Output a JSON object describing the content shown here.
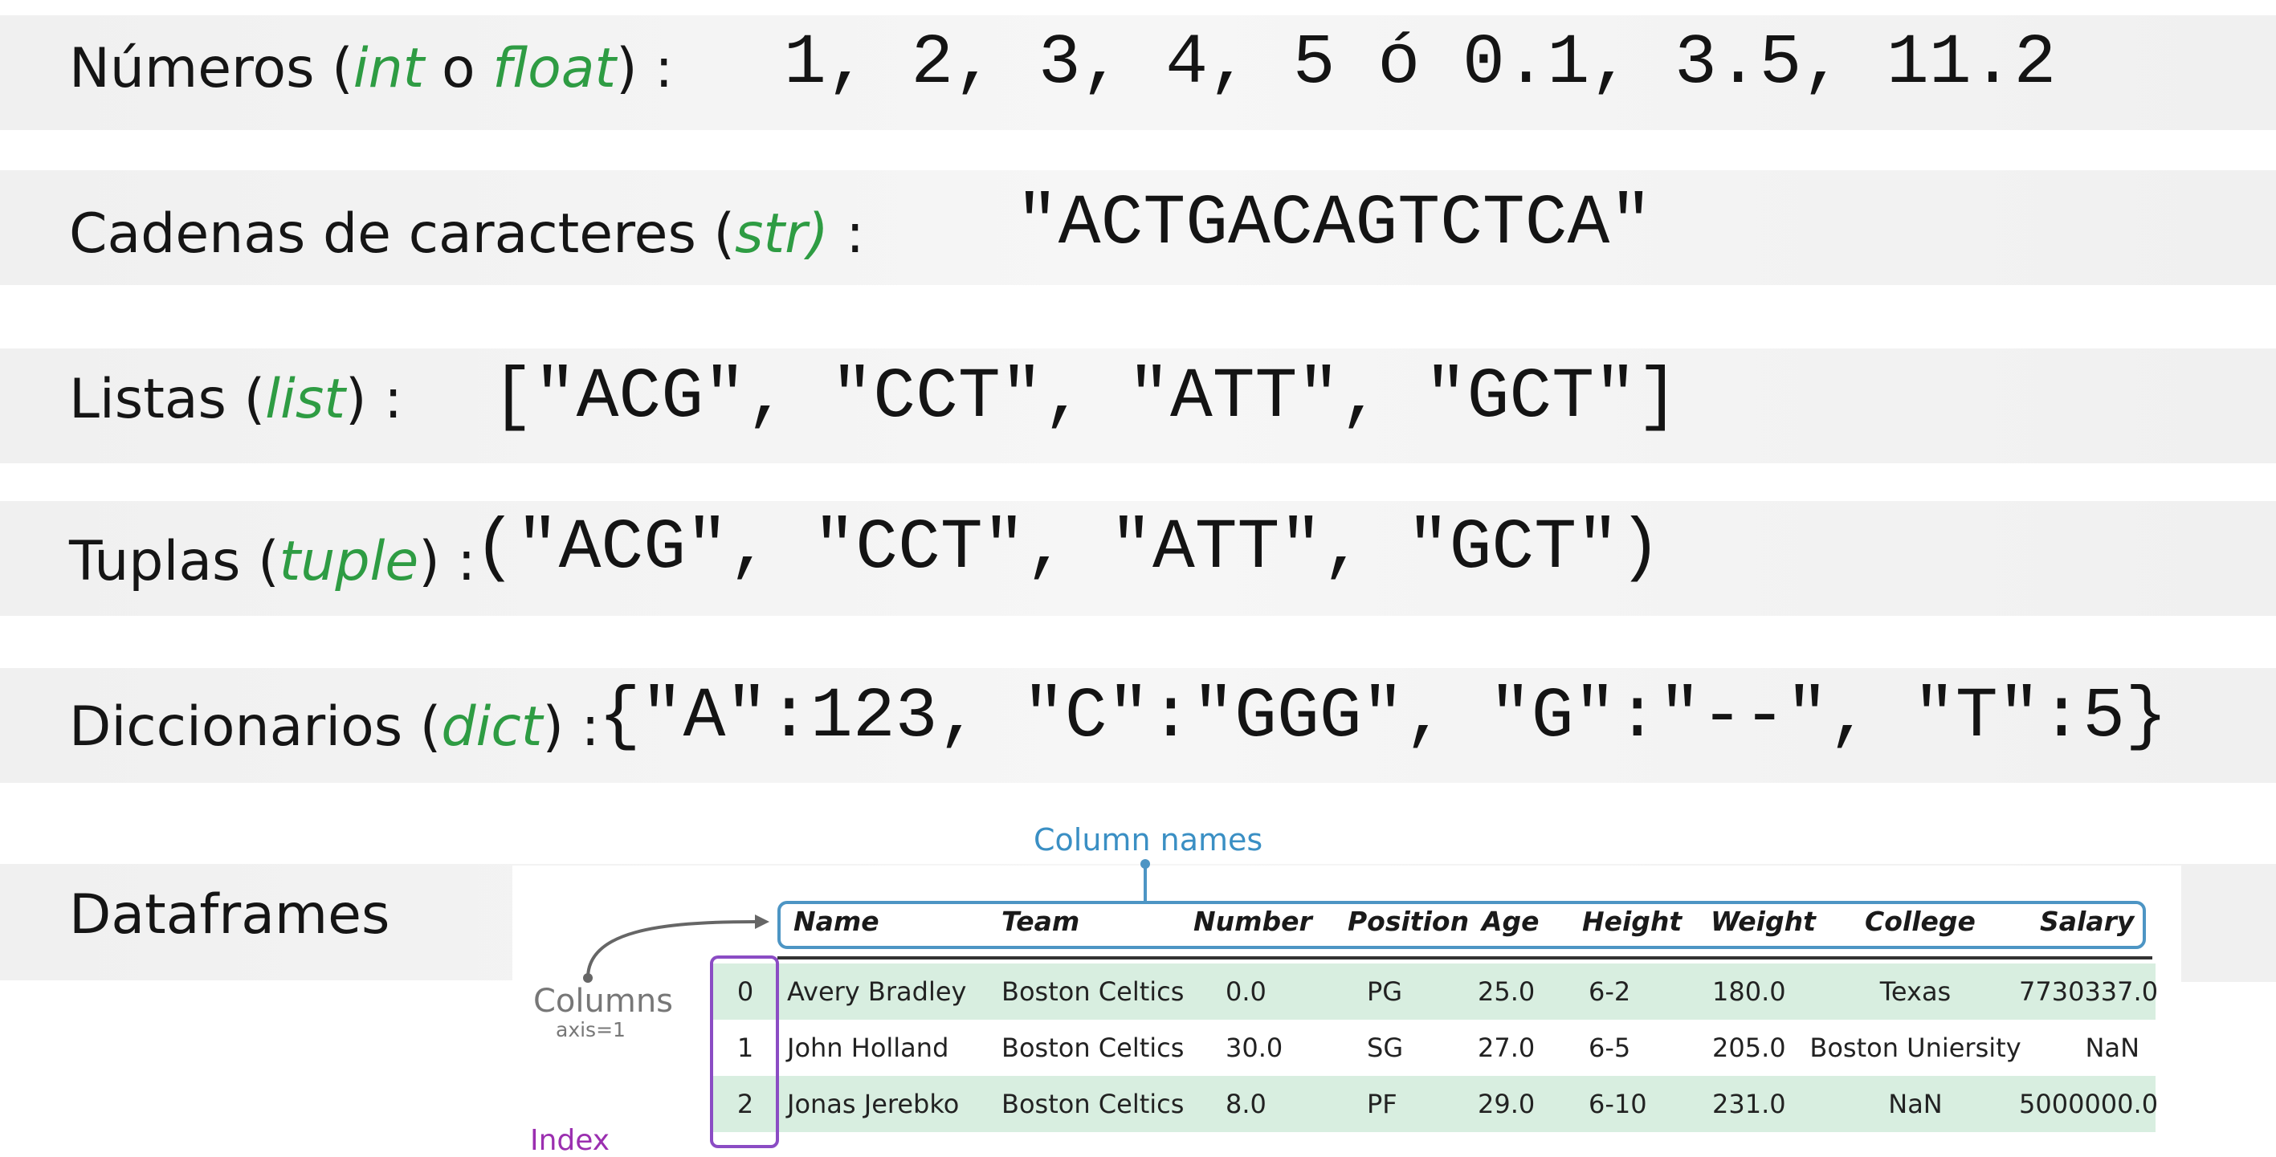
{
  "rows_text": {
    "numbers": {
      "label_pre": "Números (",
      "label_hl1": "int",
      "label_mid": " o ",
      "label_hl2": "float",
      "label_post": ") :",
      "code": "1, 2, 3, 4, 5  ó 0.1, 3.5, 11.2"
    },
    "strings": {
      "label_pre": "Cadenas de caracteres (",
      "label_hl": "str)",
      "label_post": " :",
      "code": "\"ACTGACAGTCTCA\""
    },
    "lists": {
      "label_pre": "Listas (",
      "label_hl": "list",
      "label_post": ") :",
      "code": "[\"ACG\", \"CCT\", \"ATT\", \"GCT\"]"
    },
    "tuples": {
      "label_pre": "Tuplas (",
      "label_hl": "tuple",
      "label_post": ") :",
      "code": "(\"ACG\", \"CCT\", \"ATT\", \"GCT\")"
    },
    "dicts": {
      "label_pre": "Diccionarios (",
      "label_hl": "dict",
      "label_post": ") :",
      "code": "{\"A\":123, \"C\":\"GGG\", \"G\":\"--\", \"T\":5}"
    },
    "dataframes": {
      "label": "Dataframes"
    }
  },
  "dataframe": {
    "column_names_caption": "Column names",
    "columns_caption": "Columns",
    "axis_caption": "axis=1",
    "index_caption": "Index",
    "headers": [
      "Name",
      "Team",
      "Number",
      "Position",
      "Age",
      "Height",
      "Weight",
      "College",
      "Salary"
    ],
    "rows": [
      [
        "0",
        "Avery Bradley",
        "Boston Celtics",
        "0.0",
        "PG",
        "25.0",
        "6-2",
        "180.0",
        "Texas",
        "7730337.0"
      ],
      [
        "1",
        "John Holland",
        "Boston Celtics",
        "30.0",
        "SG",
        "27.0",
        "6-5",
        "205.0",
        "Boston Uniersity",
        "NaN"
      ],
      [
        "2",
        "Jonas Jerebko",
        "Boston Celtics",
        "8.0",
        "PF",
        "29.0",
        "6-10",
        "231.0",
        "NaN",
        "5000000.0"
      ]
    ]
  },
  "colors": {
    "highlight_green": "#2e9c43",
    "header_blue": "#4d95c4",
    "row_green": "#d8eee0",
    "index_purple": "#8b4cc4"
  }
}
